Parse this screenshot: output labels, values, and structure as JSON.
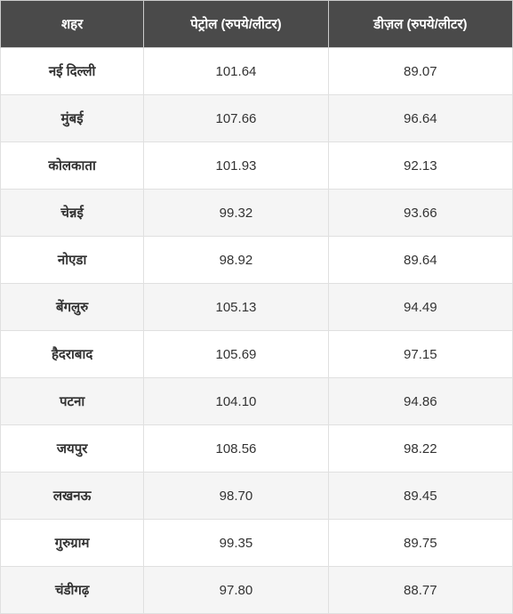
{
  "table": {
    "type": "table",
    "header_bg_color": "#4a4a4a",
    "header_text_color": "#ffffff",
    "row_even_bg": "#f5f5f5",
    "row_odd_bg": "#ffffff",
    "border_color": "#e0e0e0",
    "text_color": "#333333",
    "header_fontsize": 15,
    "cell_fontsize": 15,
    "columns": [
      {
        "label": "शहर",
        "width": "28%",
        "align": "center"
      },
      {
        "label": "पेट्रोल (रुपये/लीटर)",
        "width": "36%",
        "align": "center"
      },
      {
        "label": "डीज़ल (रुपये/लीटर)",
        "width": "36%",
        "align": "center"
      }
    ],
    "rows": [
      {
        "city": "नई दिल्ली",
        "petrol": "101.64",
        "diesel": "89.07"
      },
      {
        "city": "मुंबई",
        "petrol": "107.66",
        "diesel": "96.64"
      },
      {
        "city": "कोलकाता",
        "petrol": "101.93",
        "diesel": "92.13"
      },
      {
        "city": "चेन्नई",
        "petrol": "99.32",
        "diesel": "93.66"
      },
      {
        "city": "नोएडा",
        "petrol": "98.92",
        "diesel": "89.64"
      },
      {
        "city": "बेंगलुरु",
        "petrol": "105.13",
        "diesel": "94.49"
      },
      {
        "city": "हैदराबाद",
        "petrol": "105.69",
        "diesel": "97.15"
      },
      {
        "city": "पटना",
        "petrol": "104.10",
        "diesel": "94.86"
      },
      {
        "city": "जयपुर",
        "petrol": "108.56",
        "diesel": "98.22"
      },
      {
        "city": "लखनऊ",
        "petrol": "98.70",
        "diesel": "89.45"
      },
      {
        "city": "गुरुग्राम",
        "petrol": "99.35",
        "diesel": "89.75"
      },
      {
        "city": "चंडीगढ़",
        "petrol": "97.80",
        "diesel": "88.77"
      }
    ]
  }
}
